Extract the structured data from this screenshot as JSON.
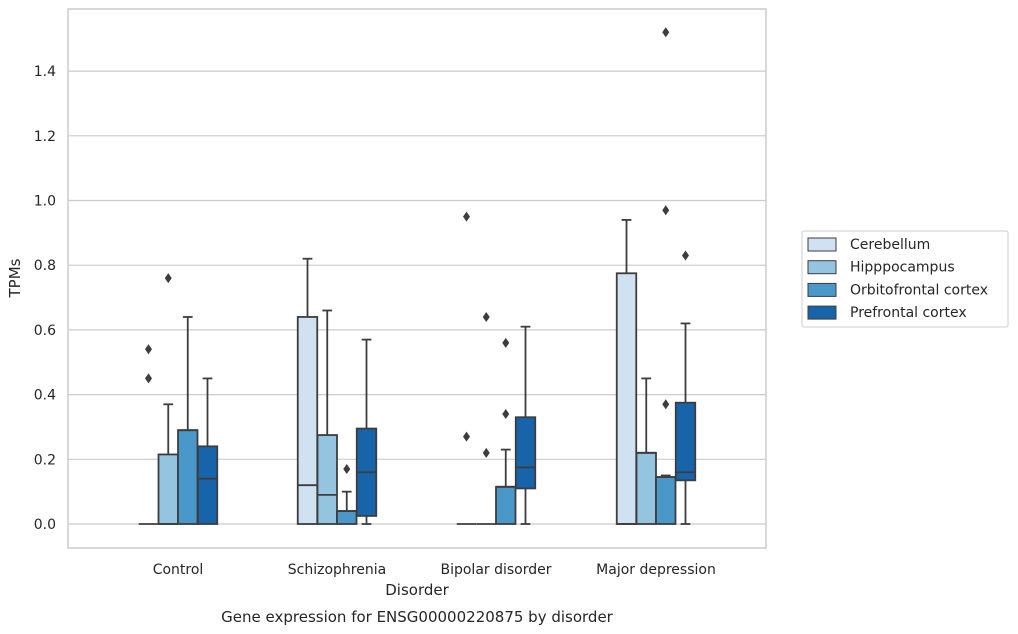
{
  "chart_data": {
    "type": "box",
    "xlabel": "Disorder",
    "ylabel": "TPMs",
    "caption": "Gene expression for ENSG00000220875 by disorder",
    "ylim": [
      -0.07,
      1.59
    ],
    "yticks": [
      "0.0",
      "0.2",
      "0.4",
      "0.6",
      "0.8",
      "1.0",
      "1.2",
      "1.4"
    ],
    "grid": "horizontal",
    "legend_position": "right",
    "categories": [
      "Control",
      "Schizophrenia",
      "Bipolar disorder",
      "Major depression"
    ],
    "series": [
      {
        "name": "Cerebellum",
        "color": "#d0e1f2",
        "boxes": [
          {
            "min": 0,
            "q1": 0,
            "median": 0,
            "q3": 0,
            "max": 0,
            "outliers": [
              0.54,
              0.45
            ]
          },
          {
            "min": 0,
            "q1": 0,
            "median": 0.12,
            "q3": 0.64,
            "max": 0.82,
            "outliers": []
          },
          {
            "min": 0,
            "q1": 0,
            "median": 0,
            "q3": 0,
            "max": 0,
            "outliers": [
              0.95,
              0.27
            ]
          },
          {
            "min": 0,
            "q1": 0,
            "median": 0,
            "q3": 0.775,
            "max": 0.94,
            "outliers": []
          }
        ]
      },
      {
        "name": "Hipppocampus",
        "color": "#94c4df",
        "boxes": [
          {
            "min": 0,
            "q1": 0,
            "median": 0,
            "q3": 0.215,
            "max": 0.37,
            "outliers": [
              0.76
            ]
          },
          {
            "min": 0,
            "q1": 0,
            "median": 0.09,
            "q3": 0.275,
            "max": 0.66,
            "outliers": []
          },
          {
            "min": 0,
            "q1": 0,
            "median": 0,
            "q3": 0,
            "max": 0,
            "outliers": [
              0.64,
              0.22
            ]
          },
          {
            "min": 0,
            "q1": 0,
            "median": 0.22,
            "q3": 0.22,
            "max": 0.45,
            "outliers": []
          }
        ]
      },
      {
        "name": "Orbitofrontal cortex",
        "color": "#4a98c9",
        "boxes": [
          {
            "min": 0,
            "q1": 0,
            "median": 0.29,
            "q3": 0.29,
            "max": 0.64,
            "outliers": []
          },
          {
            "min": 0,
            "q1": 0,
            "median": 0.04,
            "q3": 0.04,
            "max": 0.1,
            "outliers": [
              0.17
            ]
          },
          {
            "min": 0,
            "q1": 0,
            "median": 0.115,
            "q3": 0.115,
            "max": 0.23,
            "outliers": [
              0.56,
              0.34
            ]
          },
          {
            "min": 0,
            "q1": 0,
            "median": 0.145,
            "q3": 0.145,
            "max": 0.15,
            "outliers": [
              1.52,
              0.97,
              0.37
            ]
          }
        ]
      },
      {
        "name": "Prefrontal cortex",
        "color": "#1764ab",
        "boxes": [
          {
            "min": 0,
            "q1": 0,
            "median": 0.14,
            "q3": 0.24,
            "max": 0.45,
            "outliers": []
          },
          {
            "min": 0,
            "q1": 0.025,
            "median": 0.16,
            "q3": 0.295,
            "max": 0.57,
            "outliers": []
          },
          {
            "min": 0,
            "q1": 0.11,
            "median": 0.175,
            "q3": 0.33,
            "max": 0.61,
            "outliers": []
          },
          {
            "min": 0,
            "q1": 0.135,
            "median": 0.16,
            "q3": 0.375,
            "max": 0.62,
            "outliers": [
              0.83
            ]
          }
        ]
      }
    ]
  }
}
